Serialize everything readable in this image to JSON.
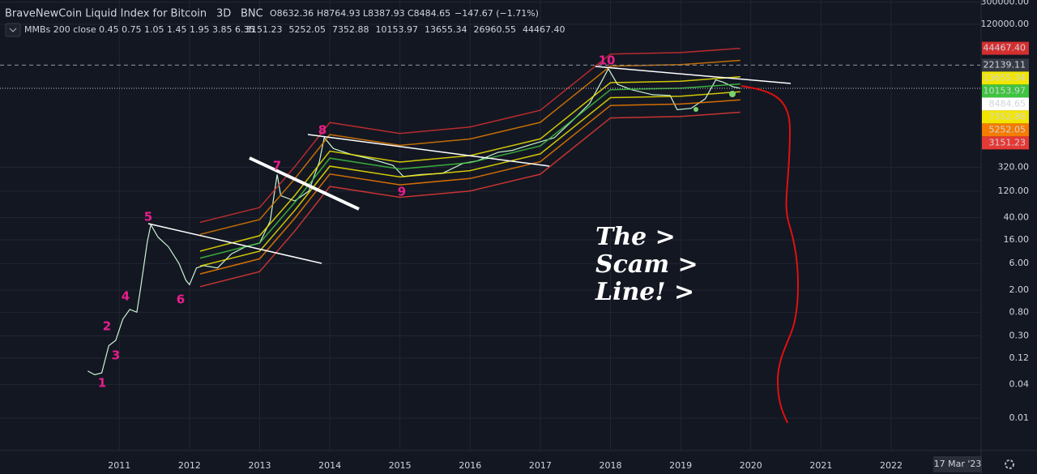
{
  "header": {
    "symbol": "BraveNewCoin Liquid Index for Bitcoin",
    "interval": "3D",
    "exchange": "BNC",
    "ohlc": [
      "O8632.36",
      "H8764.93",
      "L8387.93",
      "C8484.65",
      "−147.67 (−1.71%)"
    ],
    "indicator": "MMBs 200 close 0.45 0.75 1.05 1.45 1.95 3.85 6.35"
  },
  "chart_data": {
    "type": "line",
    "log_scale": true,
    "grid": true,
    "xlim": [
      2009.3,
      2023.27
    ],
    "xticks": [
      2011,
      2012,
      2013,
      2014,
      2015,
      2016,
      2017,
      2018,
      2019,
      2020,
      2021,
      2022
    ],
    "ylim": [
      0.0027,
      328000
    ],
    "yticks": [
      {
        "value": 300000,
        "label": "300000.00"
      },
      {
        "value": 120000,
        "label": "120000.00"
      },
      {
        "value": 320,
        "label": "320.00"
      },
      {
        "value": 120,
        "label": "120.00"
      },
      {
        "value": 40,
        "label": "40.00"
      },
      {
        "value": 16,
        "label": "16.00"
      },
      {
        "value": 6,
        "label": "6.00"
      },
      {
        "value": 2,
        "label": "2.00"
      },
      {
        "value": 0.8,
        "label": "0.80"
      },
      {
        "value": 0.3,
        "label": "0.30"
      },
      {
        "value": 0.12,
        "label": "0.12"
      },
      {
        "value": 0.04,
        "label": "0.04"
      },
      {
        "value": 0.01,
        "label": "0.01"
      }
    ],
    "series": [
      {
        "color": "#c8f5d0",
        "price_tag": true,
        "x": [
          2010.55,
          2010.65,
          2010.75,
          2010.85,
          2010.95,
          2011.05,
          2011.15,
          2011.25,
          2011.3,
          2011.4,
          2011.45,
          2011.55,
          2011.7,
          2011.85,
          2011.95,
          2012.0,
          2012.1,
          2012.2,
          2012.4,
          2012.6,
          2012.8,
          2013.0,
          2013.15,
          2013.25,
          2013.3,
          2013.5,
          2013.7,
          2013.85,
          2013.92,
          2014.05,
          2014.3,
          2014.6,
          2014.9,
          2015.05,
          2015.3,
          2015.6,
          2015.9,
          2016.1,
          2016.4,
          2016.6,
          2016.9,
          2017.2,
          2017.5,
          2017.7,
          2017.9,
          2017.97,
          2018.1,
          2018.3,
          2018.6,
          2018.85,
          2018.95,
          2019.15,
          2019.35,
          2019.5,
          2019.6,
          2019.75,
          2019.85
        ],
        "values": [
          0.07,
          0.06,
          0.065,
          0.2,
          0.25,
          0.6,
          0.9,
          0.8,
          2,
          15,
          30,
          18,
          12,
          6,
          3,
          2.5,
          5,
          5.5,
          5,
          9,
          12,
          14,
          35,
          240,
          100,
          80,
          120,
          400,
          1100,
          700,
          550,
          450,
          350,
          220,
          240,
          250,
          380,
          420,
          600,
          650,
          850,
          1100,
          2500,
          4500,
          13000,
          19000,
          10000,
          8000,
          6500,
          6300,
          3500,
          3700,
          5500,
          12000,
          11000,
          9000,
          8484.65
        ]
      },
      {
        "color": "#e53935",
        "label": "3151.23",
        "price_tag": true,
        "x": [
          2012.15,
          2013.0,
          2013.5,
          2014.0,
          2015.0,
          2016.0,
          2017.0,
          2018.0,
          2019.0,
          2019.85
        ],
        "values": [
          2.3,
          4.3,
          23,
          146,
          93,
          121,
          242,
          2480,
          2640,
          3151.23
        ]
      },
      {
        "color": "#f57c00",
        "label": "5252.05",
        "price_tag": true,
        "x": [
          2012.15,
          2013.0,
          2013.5,
          2014.0,
          2015.0,
          2016.0,
          2017.0,
          2018.0,
          2019.0,
          2019.85
        ],
        "values": [
          3.9,
          7.3,
          39,
          244,
          156,
          203,
          406,
          4160,
          4420,
          5252.05
        ]
      },
      {
        "color": "#f2e600",
        "label": "7352.88",
        "price_tag": true,
        "x": [
          2012.15,
          2013.0,
          2013.5,
          2014.0,
          2015.0,
          2016.0,
          2017.0,
          2018.0,
          2019.0,
          2019.85
        ],
        "values": [
          5.4,
          10,
          54,
          338,
          216,
          281,
          562,
          5760,
          6120,
          7352.88
        ]
      },
      {
        "color": "#3ec43e",
        "label": "10153.97",
        "price_tag": true,
        "x": [
          2012.15,
          2013.0,
          2013.5,
          2014.0,
          2015.0,
          2016.0,
          2017.0,
          2018.0,
          2019.0,
          2019.85
        ],
        "values": [
          7.5,
          14,
          75,
          470,
          300,
          390,
          780,
          8000,
          8500,
          10153.97
        ]
      },
      {
        "color": "#f2e600",
        "label": "13655.34",
        "price_tag": true,
        "x": [
          2012.15,
          2013.0,
          2013.5,
          2014.0,
          2015.0,
          2016.0,
          2017.0,
          2018.0,
          2019.0,
          2019.85
        ],
        "values": [
          10,
          19,
          100,
          630,
          400,
          523,
          1045,
          10700,
          11400,
          13655.34
        ]
      },
      {
        "color": "#e07b00",
        "label": "26960.55",
        "price_tag": false,
        "x": [
          2012.15,
          2013.0,
          2013.5,
          2014.0,
          2015.0,
          2016.0,
          2017.0,
          2018.0,
          2019.0,
          2019.85
        ],
        "values": [
          20,
          37,
          200,
          1250,
          800,
          1040,
          2075,
          21300,
          22600,
          26960.55
        ]
      },
      {
        "color": "#d32f2f",
        "label": "44467.40",
        "price_tag": true,
        "x": [
          2012.15,
          2013.0,
          2013.5,
          2014.0,
          2015.0,
          2016.0,
          2017.0,
          2018.0,
          2019.0,
          2019.85
        ],
        "values": [
          33,
          61,
          330,
          2060,
          1310,
          1710,
          3420,
          35000,
          37200,
          44467.4
        ]
      }
    ],
    "hlines": [
      {
        "value": 22139.11,
        "label": "22139.11"
      }
    ],
    "annotations": [
      "1",
      "2",
      "3",
      "4",
      "5",
      "6",
      "7",
      "8",
      "9",
      "10"
    ],
    "note": [
      "The >",
      "Scam >",
      "Line! >"
    ],
    "cursor_date": "17 Mar '23"
  }
}
